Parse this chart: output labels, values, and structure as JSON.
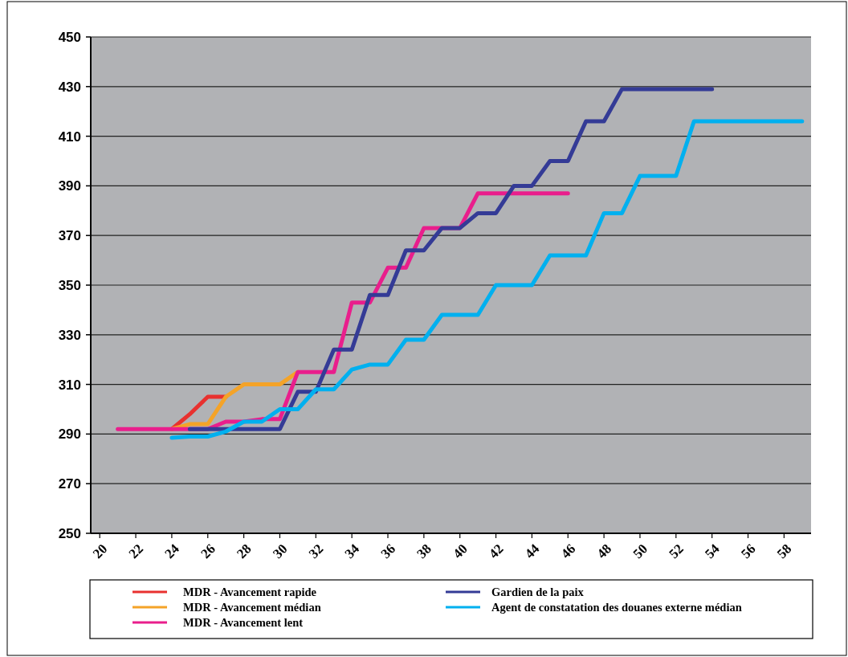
{
  "chart_data": {
    "type": "line",
    "xlim": [
      19.5,
      59.5
    ],
    "xticks": [
      20,
      22,
      24,
      26,
      28,
      30,
      32,
      34,
      36,
      38,
      40,
      42,
      44,
      46,
      48,
      50,
      52,
      54,
      56,
      58
    ],
    "ylim": [
      250,
      450
    ],
    "yticks": [
      250,
      270,
      290,
      310,
      330,
      350,
      370,
      390,
      410,
      430,
      450
    ],
    "grid": "y",
    "legend": "bottom",
    "line_style": "solid",
    "marker": "none",
    "series": [
      {
        "name": "MDR - Avancement rapide",
        "color": "#e8312f",
        "x": [
          24,
          25,
          26,
          27
        ],
        "values": [
          292,
          298,
          305,
          305
        ]
      },
      {
        "name": "MDR - Avancement médian",
        "color": "#f4a328",
        "x": [
          24,
          25,
          26,
          27,
          28,
          29,
          30,
          31
        ],
        "values": [
          292,
          294,
          294,
          305,
          310,
          310,
          310,
          315
        ]
      },
      {
        "name": "MDR - Avancement lent",
        "color": "#e91e8c",
        "x": [
          21,
          22,
          23,
          24,
          25,
          26,
          27,
          28,
          29,
          30,
          31,
          32,
          33,
          34,
          35,
          36,
          37,
          38,
          39,
          40,
          41,
          42,
          43,
          44,
          45,
          46
        ],
        "values": [
          292,
          292,
          292,
          292,
          292,
          292,
          295,
          295,
          296,
          296,
          315,
          315,
          315,
          343,
          343,
          357,
          357,
          373,
          373,
          373,
          387,
          387,
          387,
          387,
          387,
          387
        ]
      },
      {
        "name": "Gardien de la paix",
        "color": "#343b96",
        "x": [
          25,
          26,
          27,
          28,
          29,
          30,
          31,
          32,
          33,
          34,
          35,
          36,
          37,
          38,
          39,
          40,
          41,
          42,
          43,
          44,
          45,
          46,
          47,
          48,
          49,
          50,
          51,
          52,
          53,
          54
        ],
        "values": [
          292,
          292,
          292,
          292,
          292,
          292,
          307,
          307,
          324,
          324,
          346,
          346,
          364,
          364,
          373,
          373,
          379,
          379,
          390,
          390,
          400,
          400,
          416,
          416,
          429,
          429,
          429,
          429,
          429,
          429
        ]
      },
      {
        "name": "Agent de constatation des douanes externe médian",
        "color": "#00b0ef",
        "x": [
          24,
          25,
          26,
          27,
          28,
          29,
          30,
          31,
          32,
          33,
          34,
          35,
          36,
          37,
          38,
          39,
          40,
          41,
          42,
          43,
          44,
          45,
          46,
          47,
          48,
          49,
          50,
          51,
          52,
          53,
          54,
          55,
          56,
          57,
          58,
          59
        ],
        "values": [
          288.5,
          289,
          289,
          291,
          295,
          295,
          300,
          300,
          308,
          308,
          316,
          318,
          318,
          328,
          328,
          338,
          338,
          338,
          350,
          350,
          350,
          362,
          362,
          362,
          379,
          379,
          394,
          394,
          394,
          416,
          416,
          416,
          416,
          416,
          416,
          416
        ]
      }
    ]
  }
}
